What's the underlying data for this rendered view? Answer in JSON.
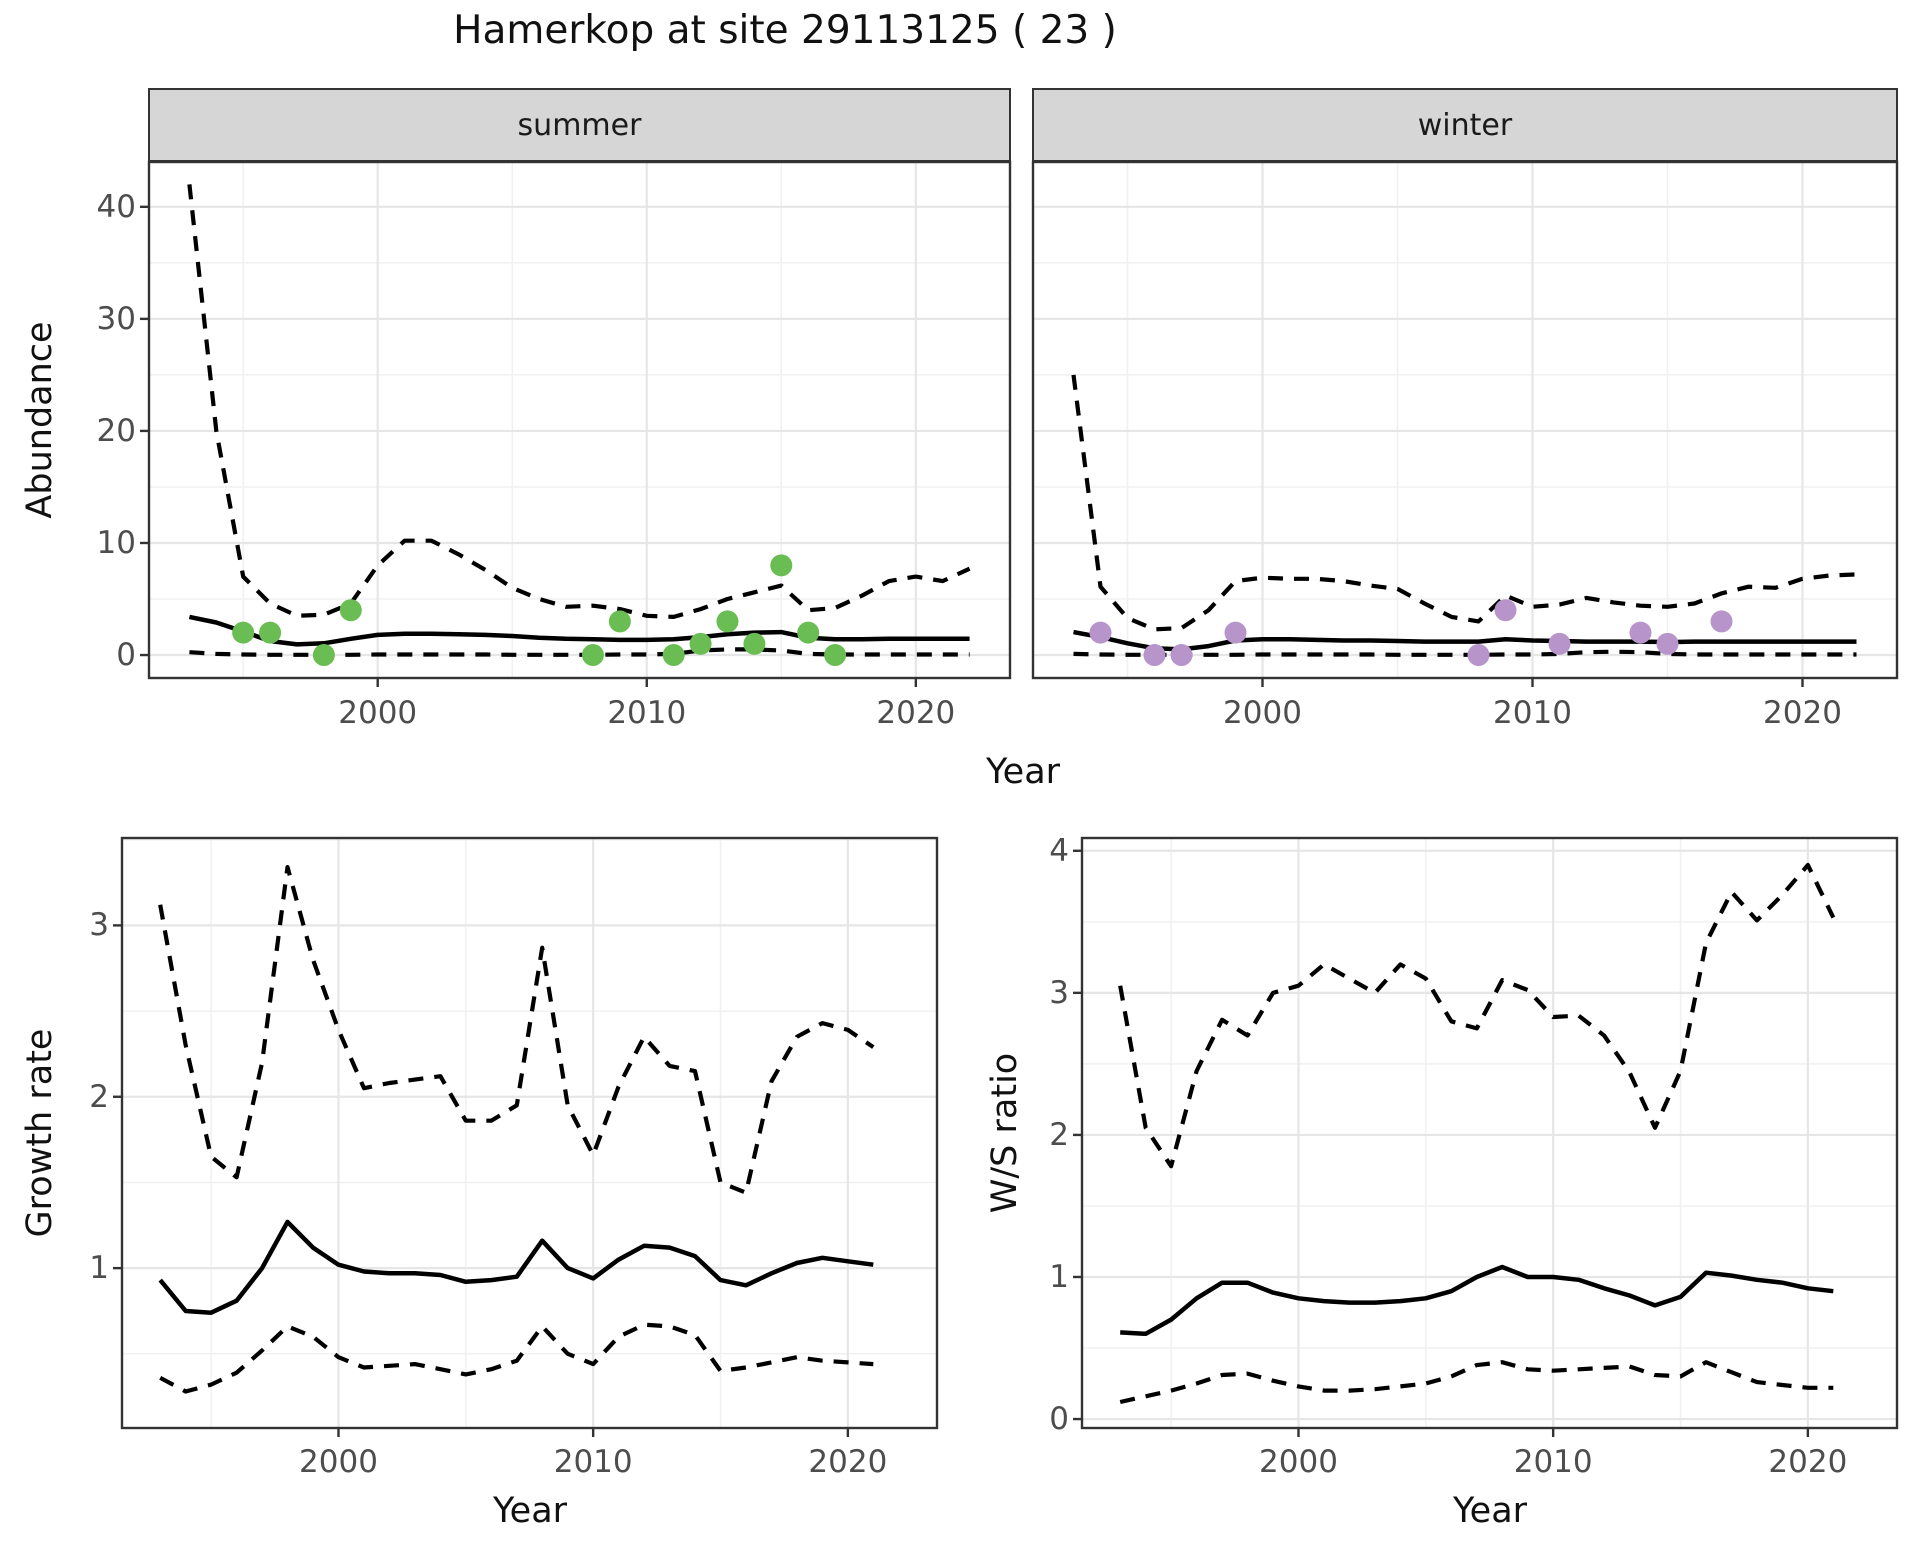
{
  "title": "Hamerkop at site 29113125 ( 23 )",
  "colors": {
    "summer_point": "#6ABD52",
    "winter_point": "#B794CA",
    "line": "#000000",
    "strip_fill": "#D6D6D6",
    "tick_text": "#4D4D4D",
    "grid_major": "#E6E6E6",
    "grid_minor": "#F0F0F0",
    "panel_border": "#333333"
  },
  "chart_data": [
    {
      "id": "abundance-summer",
      "type": "line",
      "facet_label": "summer",
      "ylabel": "Abundance",
      "xlabel": "Year",
      "x_ticks": [
        2000,
        2010,
        2020
      ],
      "y_ticks": [
        0,
        10,
        20,
        30,
        40
      ],
      "xlim": [
        1991.5,
        2023.5
      ],
      "ylim": [
        -2.05,
        44.0
      ],
      "grid": true,
      "legend": "none",
      "point_color": "#6ABD52",
      "years": [
        1993,
        1994,
        1995,
        1996,
        1997,
        1998,
        1999,
        2000,
        2001,
        2002,
        2003,
        2004,
        2005,
        2006,
        2007,
        2008,
        2009,
        2010,
        2011,
        2012,
        2013,
        2014,
        2015,
        2016,
        2017,
        2018,
        2019,
        2020,
        2021,
        2022
      ],
      "series": [
        {
          "name": "median",
          "style": "solid",
          "values": [
            3.4,
            2.9,
            2.1,
            1.25,
            0.95,
            1.05,
            1.45,
            1.8,
            1.9,
            1.9,
            1.85,
            1.8,
            1.7,
            1.55,
            1.45,
            1.4,
            1.35,
            1.35,
            1.4,
            1.6,
            1.85,
            2.0,
            2.05,
            1.55,
            1.4,
            1.4,
            1.45,
            1.45,
            1.45,
            1.45
          ]
        },
        {
          "name": "upper_ci",
          "style": "dashed",
          "values": [
            42,
            20,
            7,
            4.6,
            3.5,
            3.6,
            4.6,
            8,
            10.2,
            10.2,
            9,
            7.6,
            6,
            5,
            4.3,
            4.4,
            4.1,
            3.5,
            3.4,
            4.1,
            5,
            5.6,
            6.2,
            4,
            4.2,
            5.3,
            6.6,
            7,
            6.6,
            7.7
          ]
        },
        {
          "name": "lower_ci",
          "style": "dashed",
          "values": [
            0.25,
            0.1,
            0.05,
            0.02,
            0.02,
            0.02,
            0.02,
            0.05,
            0.05,
            0.05,
            0.05,
            0.05,
            0.02,
            0.02,
            0.02,
            0.02,
            0.05,
            0.05,
            0.1,
            0.4,
            0.5,
            0.5,
            0.4,
            0.1,
            0.05,
            0.05,
            0.05,
            0.05,
            0.05,
            0.05
          ]
        }
      ],
      "points": [
        [
          1995,
          2
        ],
        [
          1996,
          2
        ],
        [
          1998,
          0
        ],
        [
          1999,
          4
        ],
        [
          2008,
          0
        ],
        [
          2009,
          3
        ],
        [
          2011,
          0
        ],
        [
          2012,
          1
        ],
        [
          2013,
          3
        ],
        [
          2014,
          1
        ],
        [
          2015,
          8
        ],
        [
          2016,
          2
        ],
        [
          2017,
          0
        ]
      ]
    },
    {
      "id": "abundance-winter",
      "type": "line",
      "facet_label": "winter",
      "ylabel": "Abundance",
      "xlabel": "Year",
      "x_ticks": [
        2000,
        2010,
        2020
      ],
      "y_ticks": [
        0,
        10,
        20,
        30,
        40
      ],
      "xlim": [
        1991.5,
        2023.5
      ],
      "ylim": [
        -2.05,
        44.0
      ],
      "grid": true,
      "legend": "none",
      "point_color": "#B794CA",
      "years": [
        1993,
        1994,
        1995,
        1996,
        1997,
        1998,
        1999,
        2000,
        2001,
        2002,
        2003,
        2004,
        2005,
        2006,
        2007,
        2008,
        2009,
        2010,
        2011,
        2012,
        2013,
        2014,
        2015,
        2016,
        2017,
        2018,
        2019,
        2020,
        2021,
        2022
      ],
      "series": [
        {
          "name": "median",
          "style": "solid",
          "values": [
            2.05,
            1.6,
            1.05,
            0.6,
            0.5,
            0.8,
            1.3,
            1.4,
            1.4,
            1.35,
            1.3,
            1.3,
            1.25,
            1.2,
            1.2,
            1.2,
            1.4,
            1.3,
            1.25,
            1.2,
            1.2,
            1.2,
            1.15,
            1.2,
            1.2,
            1.2,
            1.2,
            1.2,
            1.2,
            1.2
          ]
        },
        {
          "name": "upper_ci",
          "style": "dashed",
          "values": [
            25,
            6.1,
            3.3,
            2.3,
            2.4,
            4,
            6.6,
            6.9,
            6.8,
            6.8,
            6.6,
            6.2,
            5.9,
            4.6,
            3.4,
            3,
            5.3,
            4.3,
            4.5,
            5.1,
            4.7,
            4.4,
            4.3,
            4.6,
            5.5,
            6.1,
            6,
            6.8,
            7.1,
            7.2
          ]
        },
        {
          "name": "lower_ci",
          "style": "dashed",
          "values": [
            0.1,
            0.05,
            0.02,
            0.02,
            0.02,
            0.02,
            0.02,
            0.05,
            0.05,
            0.05,
            0.05,
            0.05,
            0.02,
            0.02,
            0.02,
            0.02,
            0.05,
            0.05,
            0.1,
            0.25,
            0.3,
            0.25,
            0.1,
            0.05,
            0.05,
            0.05,
            0.05,
            0.05,
            0.05,
            0.05
          ]
        }
      ],
      "points": [
        [
          1994,
          2
        ],
        [
          1996,
          0
        ],
        [
          1997,
          0
        ],
        [
          1999,
          2
        ],
        [
          2008,
          0
        ],
        [
          2009,
          4
        ],
        [
          2011,
          1
        ],
        [
          2014,
          2
        ],
        [
          2015,
          1
        ],
        [
          2017,
          3
        ]
      ]
    },
    {
      "id": "growth-rate",
      "type": "line",
      "facet_label": "",
      "ylabel": "Growth rate",
      "xlabel": "Year",
      "x_ticks": [
        2000,
        2010,
        2020
      ],
      "y_ticks": [
        1,
        2,
        3
      ],
      "xlim": [
        1991.5,
        2023.5
      ],
      "ylim": [
        0.067,
        3.51
      ],
      "grid": true,
      "legend": "none",
      "point_color": null,
      "years": [
        1993,
        1994,
        1995,
        1996,
        1997,
        1998,
        1999,
        2000,
        2001,
        2002,
        2003,
        2004,
        2005,
        2006,
        2007,
        2008,
        2009,
        2010,
        2011,
        2012,
        2013,
        2014,
        2015,
        2016,
        2017,
        2018,
        2019,
        2020,
        2021
      ],
      "series": [
        {
          "name": "median",
          "style": "solid",
          "values": [
            0.93,
            0.75,
            0.74,
            0.81,
            1.0,
            1.27,
            1.12,
            1.02,
            0.98,
            0.97,
            0.97,
            0.96,
            0.92,
            0.93,
            0.95,
            1.16,
            1.0,
            0.94,
            1.05,
            1.13,
            1.12,
            1.07,
            0.93,
            0.9,
            0.97,
            1.03,
            1.06,
            1.04,
            1.02
          ]
        },
        {
          "name": "upper_ci",
          "style": "dashed",
          "values": [
            3.12,
            2.3,
            1.65,
            1.53,
            2.2,
            3.34,
            2.8,
            2.39,
            2.05,
            2.08,
            2.1,
            2.12,
            1.86,
            1.86,
            1.95,
            2.87,
            1.95,
            1.66,
            2.06,
            2.35,
            2.18,
            2.15,
            1.5,
            1.44,
            2.09,
            2.35,
            2.43,
            2.39,
            2.29
          ]
        },
        {
          "name": "lower_ci",
          "style": "dashed",
          "values": [
            0.36,
            0.28,
            0.32,
            0.39,
            0.52,
            0.66,
            0.6,
            0.48,
            0.42,
            0.43,
            0.44,
            0.41,
            0.38,
            0.41,
            0.46,
            0.66,
            0.5,
            0.44,
            0.6,
            0.67,
            0.66,
            0.61,
            0.4,
            0.42,
            0.45,
            0.48,
            0.46,
            0.45,
            0.44
          ]
        }
      ],
      "points": []
    },
    {
      "id": "ws-ratio",
      "type": "line",
      "facet_label": "",
      "ylabel": "W/S ratio",
      "xlabel": "Year",
      "x_ticks": [
        2000,
        2010,
        2020
      ],
      "y_ticks": [
        0,
        1,
        2,
        3,
        4
      ],
      "xlim": [
        1991.5,
        2023.5
      ],
      "ylim": [
        -0.063,
        4.09
      ],
      "grid": true,
      "legend": "none",
      "point_color": null,
      "years": [
        1993,
        1994,
        1995,
        1996,
        1997,
        1998,
        1999,
        2000,
        2001,
        2002,
        2003,
        2004,
        2005,
        2006,
        2007,
        2008,
        2009,
        2010,
        2011,
        2012,
        2013,
        2014,
        2015,
        2016,
        2017,
        2018,
        2019,
        2020,
        2021
      ],
      "series": [
        {
          "name": "median",
          "style": "solid",
          "values": [
            0.61,
            0.6,
            0.7,
            0.85,
            0.96,
            0.96,
            0.89,
            0.85,
            0.83,
            0.82,
            0.82,
            0.83,
            0.85,
            0.9,
            1.0,
            1.07,
            1.0,
            1.0,
            0.98,
            0.92,
            0.87,
            0.8,
            0.86,
            1.03,
            1.01,
            0.98,
            0.96,
            0.92,
            0.9
          ]
        },
        {
          "name": "upper_ci",
          "style": "dashed",
          "values": [
            3.05,
            2.05,
            1.78,
            2.45,
            2.81,
            2.7,
            3.0,
            3.05,
            3.2,
            3.1,
            3.0,
            3.2,
            3.1,
            2.8,
            2.75,
            3.09,
            3.02,
            2.83,
            2.84,
            2.7,
            2.44,
            2.05,
            2.45,
            3.35,
            3.71,
            3.51,
            3.69,
            3.9,
            3.53
          ]
        },
        {
          "name": "lower_ci",
          "style": "dashed",
          "values": [
            0.12,
            0.16,
            0.2,
            0.25,
            0.31,
            0.32,
            0.27,
            0.23,
            0.2,
            0.2,
            0.21,
            0.23,
            0.25,
            0.3,
            0.38,
            0.4,
            0.35,
            0.34,
            0.35,
            0.36,
            0.37,
            0.31,
            0.3,
            0.4,
            0.33,
            0.26,
            0.24,
            0.22,
            0.22
          ]
        }
      ],
      "points": []
    }
  ]
}
